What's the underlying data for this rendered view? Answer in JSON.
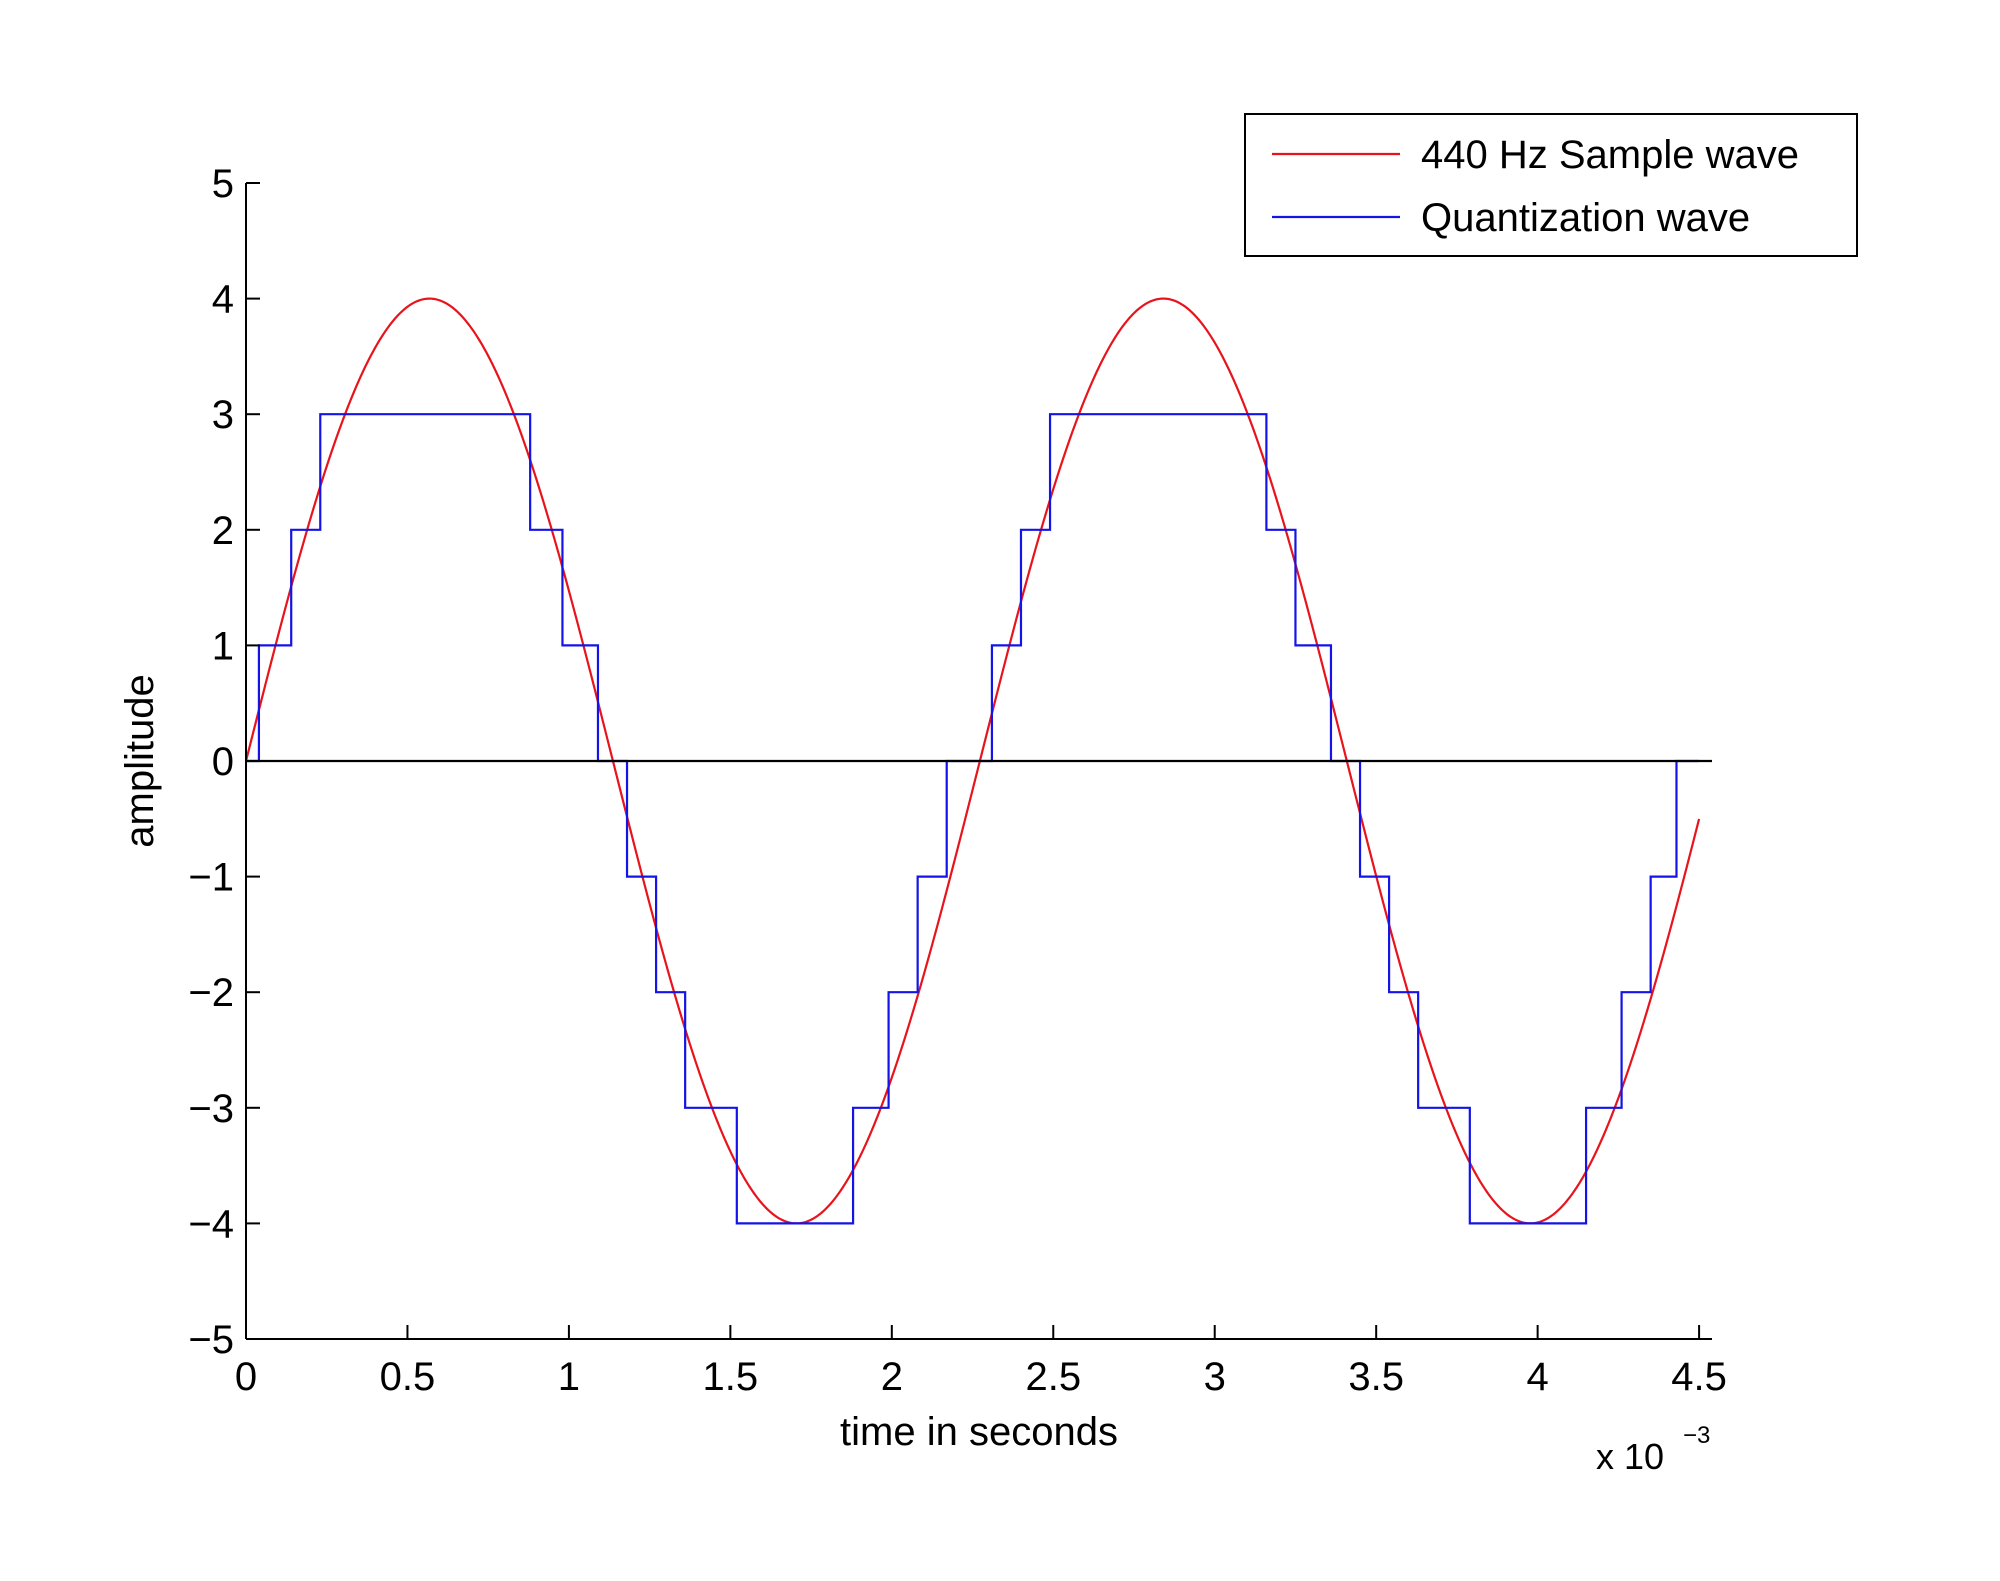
{
  "chart_data": {
    "type": "line",
    "xlabel": "time in seconds",
    "ylabel": "amplitude",
    "x_multiplier_label": "x 10",
    "x_multiplier_exponent": "−3",
    "x_scale": 0.001,
    "xlim": [
      0,
      4.54
    ],
    "ylim": [
      -5,
      5
    ],
    "x_ticks": [
      0,
      0.5,
      1,
      1.5,
      2,
      2.5,
      3,
      3.5,
      4,
      4.5
    ],
    "x_tick_labels": [
      "0",
      "0.5",
      "1",
      "1.5",
      "2",
      "2.5",
      "3",
      "3.5",
      "4",
      "4.5"
    ],
    "y_ticks": [
      5,
      4,
      3,
      2,
      1,
      0,
      -1,
      -2,
      -3,
      -4,
      -5
    ],
    "y_tick_labels": [
      "5",
      "4",
      "3",
      "2",
      "1",
      "0",
      "−1",
      "−2",
      "−3",
      "−4",
      "−5"
    ],
    "zero_line": true,
    "grid": false,
    "legend_position": "top-right",
    "series": [
      {
        "name": "440 Hz Sample wave",
        "color": "#e8141c",
        "kind": "sine",
        "amplitude": 4,
        "frequency_hz": 440,
        "x_end": 4.5
      },
      {
        "name": "Quantization wave",
        "color": "#1414e6",
        "kind": "step",
        "x_end": 4.5,
        "steps": [
          [
            0.0,
            0
          ],
          [
            0.04,
            1
          ],
          [
            0.14,
            2
          ],
          [
            0.23,
            3
          ],
          [
            0.88,
            2
          ],
          [
            0.98,
            1
          ],
          [
            1.09,
            0
          ],
          [
            1.18,
            -1
          ],
          [
            1.27,
            -2
          ],
          [
            1.36,
            -3
          ],
          [
            1.52,
            -4
          ],
          [
            1.88,
            -3
          ],
          [
            1.99,
            -2
          ],
          [
            2.08,
            -1
          ],
          [
            2.17,
            0
          ],
          [
            2.31,
            1
          ],
          [
            2.4,
            2
          ],
          [
            2.49,
            3
          ],
          [
            3.16,
            2
          ],
          [
            3.25,
            1
          ],
          [
            3.36,
            0
          ],
          [
            3.45,
            -1
          ],
          [
            3.54,
            -2
          ],
          [
            3.63,
            -3
          ],
          [
            3.79,
            -4
          ],
          [
            4.15,
            -3
          ],
          [
            4.26,
            -2
          ],
          [
            4.35,
            -1
          ],
          [
            4.43,
            0
          ]
        ]
      }
    ]
  }
}
